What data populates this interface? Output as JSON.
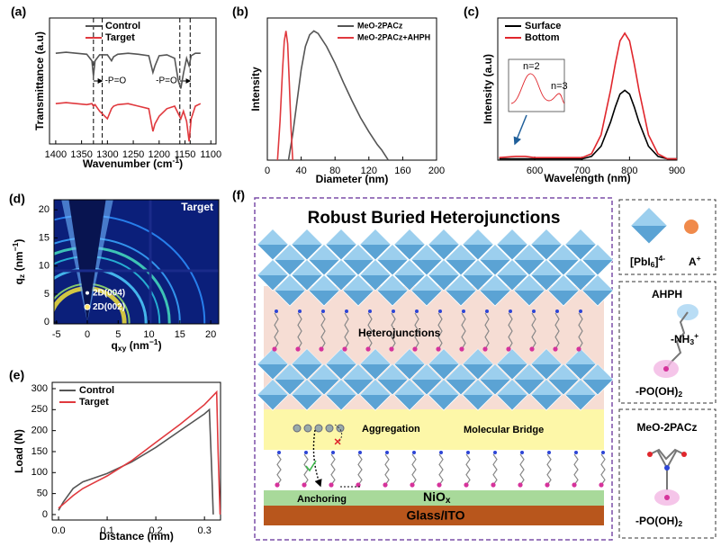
{
  "chart_data": [
    {
      "type": "line",
      "panel": "(a)",
      "xlabel": [
        "Wavenumber (cm",
        "-1",
        ")"
      ],
      "ylabel": "Transmittance (a.u)",
      "xlim": [
        1412,
        1090
      ],
      "ylim": [
        -0.8,
        1.7
      ],
      "xticks": [
        1400,
        1350,
        1300,
        1250,
        1200,
        1150,
        1100
      ],
      "legend": "upper center",
      "dashed_lines": [
        1327,
        1310,
        1160,
        1140
      ],
      "annotations": [
        "-P=O",
        "-P=O"
      ],
      "series": [
        {
          "name": "Control",
          "color": "#555555",
          "x": [
            1400,
            1380,
            1360,
            1340,
            1330,
            1327,
            1324,
            1315,
            1300,
            1292,
            1288,
            1280,
            1260,
            1240,
            1220,
            1212,
            1208,
            1200,
            1185,
            1170,
            1163,
            1158,
            1153,
            1147,
            1142,
            1138,
            1130,
            1120
          ],
          "values": [
            1.0,
            1.02,
            1.0,
            0.98,
            0.85,
            0.55,
            0.85,
            0.97,
            0.97,
            0.85,
            0.93,
            0.98,
            1.0,
            0.98,
            0.95,
            0.62,
            0.75,
            0.95,
            0.97,
            0.9,
            0.45,
            0.3,
            0.6,
            0.9,
            0.75,
            0.95,
            1.0,
            1.0
          ]
        },
        {
          "name": "Target",
          "color": "#e0393e",
          "x": [
            1400,
            1380,
            1360,
            1340,
            1330,
            1327,
            1324,
            1315,
            1300,
            1292,
            1288,
            1280,
            1260,
            1240,
            1220,
            1212,
            1208,
            1200,
            1185,
            1170,
            1163,
            1158,
            1153,
            1147,
            1142,
            1138,
            1130,
            1120
          ],
          "values": [
            0.0,
            0.02,
            0.0,
            -0.02,
            0.0,
            -0.05,
            -0.02,
            -0.15,
            -0.3,
            -0.1,
            -0.05,
            -0.02,
            0.0,
            -0.05,
            -0.1,
            -0.55,
            -0.4,
            -0.25,
            -0.1,
            -0.05,
            -0.2,
            -0.3,
            -0.15,
            -0.35,
            -0.75,
            -0.3,
            -0.05,
            0.0
          ]
        }
      ]
    },
    {
      "type": "line",
      "panel": "(b)",
      "xlabel": "Diameter (nm)",
      "ylabel": "Intensity",
      "xlim": [
        0,
        200
      ],
      "ylim": [
        0,
        1.1
      ],
      "xticks": [
        0,
        40,
        80,
        120,
        160,
        200
      ],
      "legend": "upper right",
      "series": [
        {
          "name": "MeO-2PACz",
          "color": "#555555",
          "x": [
            25,
            30,
            35,
            40,
            45,
            50,
            55,
            60,
            70,
            80,
            90,
            100,
            110,
            120,
            130,
            135,
            140,
            143
          ],
          "values": [
            0,
            0.2,
            0.45,
            0.7,
            0.88,
            0.97,
            1.0,
            0.98,
            0.88,
            0.75,
            0.6,
            0.46,
            0.33,
            0.22,
            0.12,
            0.08,
            0.03,
            0
          ]
        },
        {
          "name": "MeO-2PACz+AHPH",
          "color": "#e0393e",
          "x": [
            12,
            15,
            18,
            20,
            22,
            24,
            26,
            28,
            30
          ],
          "values": [
            0,
            0.3,
            0.7,
            0.92,
            1.0,
            0.9,
            0.6,
            0.25,
            0
          ]
        }
      ]
    },
    {
      "type": "line",
      "panel": "(c)",
      "xlabel": "Wavelength (nm)",
      "ylabel": "Intensity (a.u)",
      "xlim": [
        522,
        900
      ],
      "ylim": [
        0,
        1.12
      ],
      "xticks": [
        600,
        700,
        800,
        900
      ],
      "legend": "upper left",
      "inset_labels": [
        "n=2",
        "n=3"
      ],
      "series": [
        {
          "name": "Surface",
          "color": "#000000",
          "x": [
            525,
            560,
            580,
            600,
            650,
            700,
            720,
            740,
            760,
            770,
            780,
            790,
            800,
            810,
            820,
            840,
            860,
            880,
            900
          ],
          "values": [
            0.01,
            0.01,
            0.01,
            0.01,
            0.01,
            0.01,
            0.03,
            0.11,
            0.3,
            0.42,
            0.52,
            0.55,
            0.52,
            0.42,
            0.3,
            0.11,
            0.03,
            0.01,
            0.01
          ]
        },
        {
          "name": "Bottom",
          "color": "#e0262c",
          "x": [
            525,
            560,
            580,
            600,
            650,
            700,
            720,
            740,
            760,
            770,
            780,
            790,
            800,
            810,
            820,
            840,
            860,
            880,
            900
          ],
          "values": [
            0.02,
            0.03,
            0.03,
            0.02,
            0.02,
            0.02,
            0.05,
            0.2,
            0.55,
            0.76,
            0.94,
            1.0,
            0.94,
            0.76,
            0.55,
            0.2,
            0.05,
            0.01,
            0.01
          ]
        }
      ]
    },
    {
      "type": "image",
      "panel": "(d)",
      "xlabel": [
        "q",
        "xy",
        " (nm",
        "−1",
        ")"
      ],
      "ylabel": [
        "q",
        "z",
        " (nm",
        "−1",
        ")"
      ],
      "xlim": [
        -5.4,
        21.3
      ],
      "ylim": [
        -0.3,
        21.8
      ],
      "xticks": [
        -5,
        0,
        5,
        10,
        15,
        20
      ],
      "yticks": [
        0,
        5,
        10,
        15,
        20
      ],
      "labels": [
        "Target",
        "2D(004)",
        "2D(002)"
      ]
    },
    {
      "type": "line",
      "panel": "(e)",
      "xlabel": "Distance (mm)",
      "ylabel": "Load (N)",
      "xlim": [
        -0.013,
        0.333
      ],
      "ylim": [
        -13,
        315
      ],
      "xticks": [
        {
          "value": 0,
          "label": "0.0"
        },
        0.1,
        0.2,
        0.3
      ],
      "yticks": [
        0,
        50,
        100,
        150,
        200,
        250,
        300
      ],
      "legend": "upper left",
      "series": [
        {
          "name": "Control",
          "color": "#555555",
          "x": [
            0,
            0.01,
            0.03,
            0.05,
            0.08,
            0.1,
            0.15,
            0.2,
            0.25,
            0.3,
            0.31,
            0.315,
            0.318
          ],
          "values": [
            10,
            30,
            62,
            78,
            90,
            98,
            125,
            160,
            200,
            240,
            250,
            100,
            0
          ]
        },
        {
          "name": "Target",
          "color": "#e0393e",
          "x": [
            0,
            0.01,
            0.03,
            0.05,
            0.08,
            0.1,
            0.15,
            0.2,
            0.25,
            0.3,
            0.325,
            0.328,
            0.332
          ],
          "values": [
            15,
            25,
            45,
            62,
            80,
            92,
            128,
            172,
            215,
            262,
            292,
            150,
            0
          ]
        }
      ]
    }
  ],
  "diagram": {
    "panel": "(f)",
    "title": "Robust Buried Heterojunctions",
    "labels": {
      "heterojunctions": "Heterojunctions",
      "aggregation": "Aggregation",
      "bridge": "Molecular Bridge",
      "anchoring": "Anchoring",
      "nio": [
        "NiO",
        "x"
      ],
      "substrate": "Glass/ITO"
    },
    "legend": {
      "octahedron": [
        "[PbI",
        "6",
        "]",
        "4-"
      ],
      "cation": [
        "A",
        "+"
      ],
      "ahph": "AHPH",
      "amine": [
        "-NH",
        "3",
        "+"
      ],
      "phosphonic_1": [
        "-PO(OH)",
        "2"
      ],
      "meo": "MeO-2PACz",
      "phosphonic_2": [
        "-PO(OH)",
        "2"
      ]
    }
  }
}
